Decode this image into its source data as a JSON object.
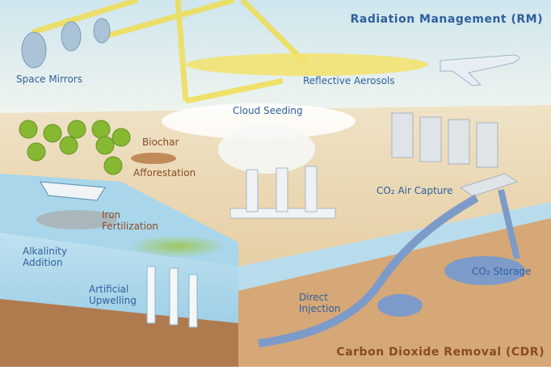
{
  "titles": {
    "rm": "Radiation Management (RM)",
    "cdr": "Carbon Dioxide Removal (CDR)"
  },
  "labels": [
    {
      "lines": [
        "Space Mirrors"
      ]
    },
    {
      "lines": [
        "Reflective Aerosols"
      ]
    },
    {
      "lines": [
        "Cloud Seeding"
      ]
    },
    {
      "lines": [
        "Biochar"
      ]
    },
    {
      "lines": [
        "Afforestation"
      ]
    },
    {
      "lines": [
        "CO₂ Air Capture"
      ]
    },
    {
      "lines": [
        "Iron",
        "Fertilization"
      ]
    },
    {
      "lines": [
        "Alkalinity",
        "Addition"
      ]
    },
    {
      "lines": [
        "Artificial",
        "Upwelling"
      ]
    },
    {
      "lines": [
        "Direct",
        "Injection"
      ]
    },
    {
      "lines": [
        "CO₂ Storage"
      ]
    }
  ]
}
